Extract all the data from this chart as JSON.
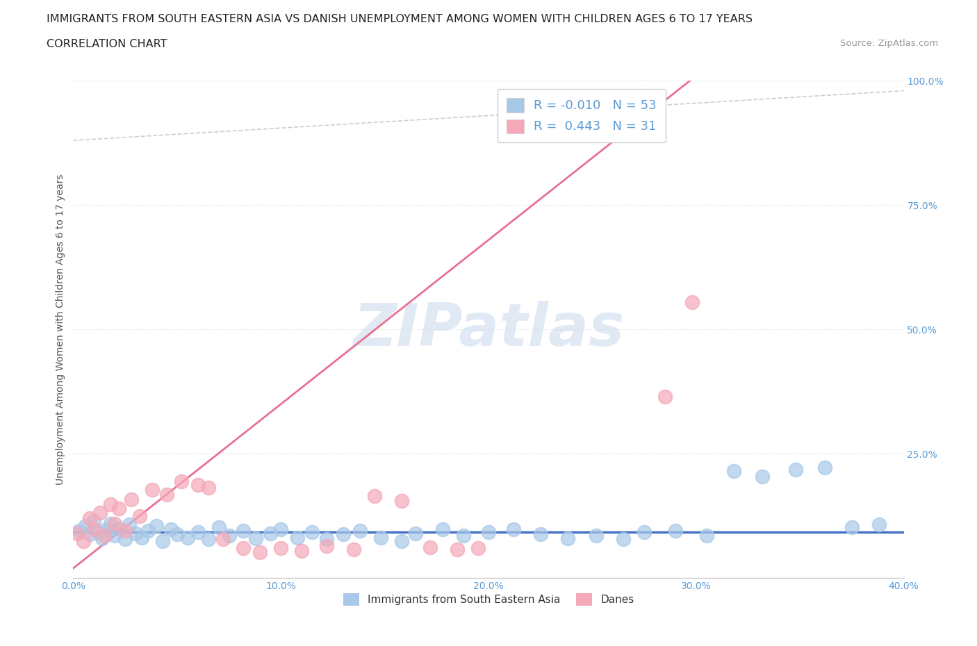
{
  "title": "IMMIGRANTS FROM SOUTH EASTERN ASIA VS DANISH UNEMPLOYMENT AMONG WOMEN WITH CHILDREN AGES 6 TO 17 YEARS",
  "subtitle": "CORRELATION CHART",
  "source": "Source: ZipAtlas.com",
  "ylabel": "Unemployment Among Women with Children Ages 6 to 17 years",
  "xlim": [
    0.0,
    0.4
  ],
  "ylim": [
    0.0,
    1.0
  ],
  "xtick_labels": [
    "0.0%",
    "",
    "10.0%",
    "",
    "20.0%",
    "",
    "30.0%",
    "",
    "40.0%"
  ],
  "xtick_values": [
    0.0,
    0.05,
    0.1,
    0.15,
    0.2,
    0.25,
    0.3,
    0.35,
    0.4
  ],
  "ytick_labels": [
    "25.0%",
    "50.0%",
    "75.0%",
    "100.0%"
  ],
  "ytick_values": [
    0.25,
    0.5,
    0.75,
    1.0
  ],
  "r_blue": -0.01,
  "n_blue": 53,
  "r_pink": 0.443,
  "n_pink": 31,
  "legend_label_blue": "Immigrants from South Eastern Asia",
  "legend_label_pink": "Danes",
  "color_blue": "#a8c8e8",
  "color_pink": "#f4a8b8",
  "color_blue_line": "#4472c4",
  "color_pink_line": "#e87090",
  "color_gray_dash": "#c0c0c8",
  "color_tick_label": "#5b9bd5",
  "color_ylabel": "#555555",
  "color_title": "#222222",
  "color_source": "#999999",
  "color_grid": "#dddddd",
  "watermark_text": "ZIPatlas",
  "background_color": "#ffffff",
  "blue_scatter_x": [
    0.003,
    0.006,
    0.008,
    0.01,
    0.012,
    0.014,
    0.016,
    0.018,
    0.02,
    0.022,
    0.025,
    0.027,
    0.03,
    0.033,
    0.036,
    0.04,
    0.043,
    0.047,
    0.05,
    0.055,
    0.06,
    0.065,
    0.07,
    0.075,
    0.082,
    0.088,
    0.095,
    0.1,
    0.108,
    0.115,
    0.122,
    0.13,
    0.138,
    0.148,
    0.158,
    0.165,
    0.178,
    0.188,
    0.2,
    0.212,
    0.225,
    0.238,
    0.252,
    0.265,
    0.275,
    0.29,
    0.305,
    0.318,
    0.332,
    0.348,
    0.362,
    0.375,
    0.388
  ],
  "blue_scatter_y": [
    0.095,
    0.105,
    0.088,
    0.115,
    0.092,
    0.08,
    0.098,
    0.11,
    0.085,
    0.1,
    0.078,
    0.108,
    0.09,
    0.082,
    0.095,
    0.105,
    0.075,
    0.098,
    0.088,
    0.082,
    0.092,
    0.078,
    0.102,
    0.085,
    0.095,
    0.08,
    0.09,
    0.098,
    0.082,
    0.092,
    0.078,
    0.088,
    0.095,
    0.082,
    0.075,
    0.09,
    0.098,
    0.085,
    0.092,
    0.098,
    0.088,
    0.08,
    0.085,
    0.078,
    0.092,
    0.095,
    0.085,
    0.215,
    0.205,
    0.218,
    0.222,
    0.102,
    0.108
  ],
  "pink_scatter_x": [
    0.002,
    0.005,
    0.008,
    0.01,
    0.013,
    0.015,
    0.018,
    0.02,
    0.022,
    0.025,
    0.028,
    0.032,
    0.038,
    0.045,
    0.052,
    0.06,
    0.065,
    0.072,
    0.082,
    0.09,
    0.1,
    0.11,
    0.122,
    0.135,
    0.145,
    0.158,
    0.172,
    0.185,
    0.195,
    0.285,
    0.298
  ],
  "pink_scatter_y": [
    0.09,
    0.075,
    0.12,
    0.098,
    0.132,
    0.085,
    0.148,
    0.11,
    0.14,
    0.095,
    0.158,
    0.125,
    0.178,
    0.168,
    0.195,
    0.188,
    0.182,
    0.078,
    0.06,
    0.052,
    0.06,
    0.055,
    0.065,
    0.058,
    0.165,
    0.155,
    0.062,
    0.058,
    0.06,
    0.365,
    0.555
  ],
  "pink_line_x": [
    0.0,
    0.2
  ],
  "pink_line_y": [
    0.0,
    0.65
  ],
  "blue_line_y": 0.092
}
